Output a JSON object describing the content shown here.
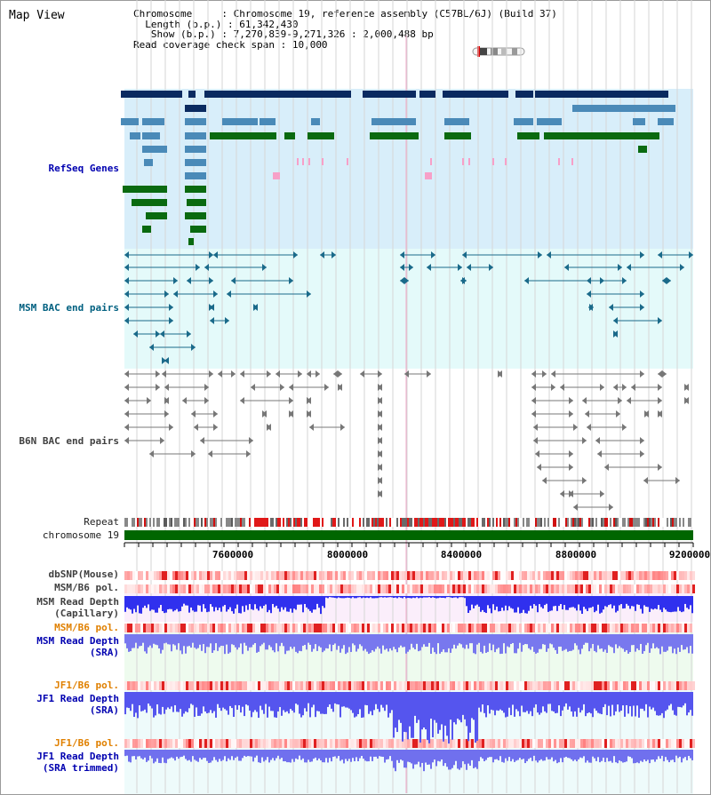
{
  "page_title": "Map View",
  "info": {
    "chromosome_key": "Chromosome",
    "chromosome_val": ": Chromosome 19, reference assembly (C57BL/6J) (Build 37)",
    "length_key": "Length (b.p.)",
    "length_val": ": 61,342,430",
    "show_key": "Show (b.p.)",
    "show_val": ": 7,270,839-9,271,326 : 2,000,488 bp",
    "coverage_key": "Read coverage check span",
    "coverage_val": ": 10,000"
  },
  "tracks": {
    "refseq": "RefSeq Genes",
    "msm_bac": "MSM BAC end pairs",
    "b6n_bac": "B6N BAC end pairs",
    "repeat": "Repeat",
    "chromosome": "chromosome 19",
    "dbsnp": "dbSNP(Mouse)",
    "msm_b6_pol_1": "MSM/B6 pol.",
    "msm_depth_cap_1": "MSM Read Depth",
    "msm_depth_cap_2": "(Capillary)",
    "msm_b6_pol_2": "MSM/B6 pol.",
    "msm_depth_sra_1": "MSM Read Depth",
    "msm_depth_sra_2": "(SRA)",
    "jf1_b6_pol_1": "JF1/B6 pol.",
    "jf1_depth_sra_1": "JF1 Read Depth",
    "jf1_depth_sra_2": "(SRA)",
    "jf1_b6_pol_2": "JF1/B6 pol.",
    "jf1_depth_trim_1": "JF1 Read Depth",
    "jf1_depth_trim_2": "(SRA trimmed)"
  },
  "axis": {
    "ticks": [
      "7600000",
      "8000000",
      "8400000",
      "8800000",
      "9200000"
    ]
  },
  "colors": {
    "refseq_bg": "#d8eefa",
    "msm_bg": "#e4fafa",
    "gene_navy": "#0a2a60",
    "gene_blue": "#4a8ab8",
    "gene_green": "#0a6a10",
    "chrom_green": "#006600",
    "depth_blue": "#2020ee"
  }
}
